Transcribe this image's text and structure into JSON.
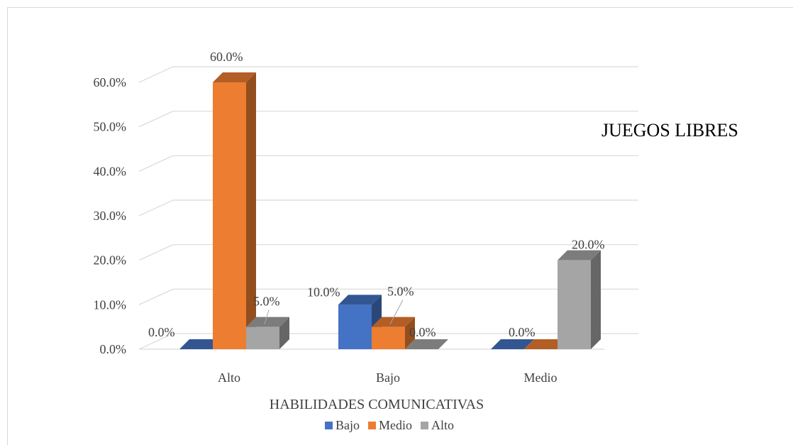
{
  "chart_data": {
    "type": "bar",
    "title": "JUEGOS LIBRES",
    "xlabel": "HABILIDADES COMUNICATIVAS",
    "ylabel": "",
    "categories": [
      "Alto",
      "Bajo",
      "Medio"
    ],
    "series": [
      {
        "name": "Bajo",
        "values": [
          0.0,
          10.0,
          0.0
        ],
        "labels": [
          "0.0%",
          "10.0%",
          ""
        ],
        "color": "#4472c4"
      },
      {
        "name": "Medio",
        "values": [
          60.0,
          5.0,
          0.0
        ],
        "labels": [
          "60.0%",
          "5.0%",
          "0.0%"
        ],
        "color": "#ed7d31"
      },
      {
        "name": "Alto",
        "values": [
          5.0,
          0.0,
          20.0
        ],
        "labels": [
          "5.0%",
          "0.0%",
          "20.0%"
        ],
        "color": "#a5a5a5"
      }
    ],
    "yticks": [
      "0.0%",
      "10.0%",
      "20.0%",
      "30.0%",
      "40.0%",
      "50.0%",
      "60.0%"
    ],
    "ylim": [
      0,
      60
    ],
    "grid": true,
    "legend": "bottom"
  }
}
